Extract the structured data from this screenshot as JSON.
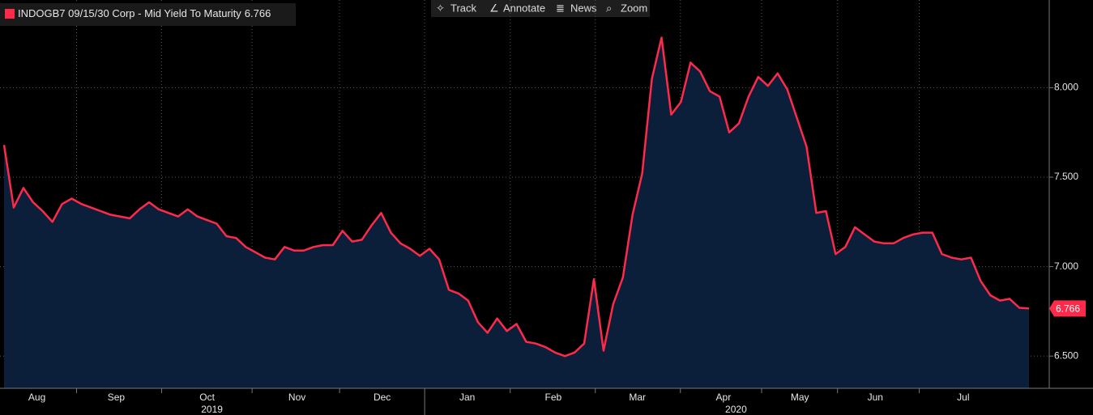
{
  "toolbar": {
    "buttons": [
      "Track",
      "Annotate",
      "News",
      "Zoom"
    ]
  },
  "chart_data": {
    "type": "area",
    "series": [
      {
        "name": "INDOGB7 09/15/30 Corp - Mid Yield To Maturity",
        "color": "#ff2a4a",
        "values": [
          7.68,
          7.33,
          7.44,
          7.36,
          7.31,
          7.25,
          7.35,
          7.38,
          7.35,
          7.33,
          7.31,
          7.29,
          7.28,
          7.27,
          7.32,
          7.36,
          7.32,
          7.3,
          7.28,
          7.32,
          7.28,
          7.26,
          7.24,
          7.17,
          7.16,
          7.11,
          7.08,
          7.05,
          7.04,
          7.11,
          7.09,
          7.09,
          7.11,
          7.12,
          7.12,
          7.2,
          7.14,
          7.15,
          7.23,
          7.3,
          7.19,
          7.13,
          7.1,
          7.06,
          7.1,
          7.04,
          6.87,
          6.85,
          6.81,
          6.69,
          6.63,
          6.71,
          6.64,
          6.68,
          6.58,
          6.57,
          6.55,
          6.52,
          6.5,
          6.52,
          6.57,
          6.93,
          6.53,
          6.79,
          6.94,
          7.29,
          7.52,
          8.05,
          8.28,
          7.85,
          7.92,
          8.14,
          8.09,
          7.98,
          7.95,
          7.75,
          7.8,
          7.95,
          8.06,
          8.01,
          8.08,
          7.99,
          7.83,
          7.67,
          7.3,
          7.31,
          7.07,
          7.11,
          7.22,
          7.18,
          7.14,
          7.13,
          7.13,
          7.16,
          7.18,
          7.19,
          7.19,
          7.07,
          7.05,
          7.04,
          7.05,
          6.92,
          6.84,
          6.81,
          6.82,
          6.77,
          6.766
        ]
      }
    ],
    "fill_color": "#0b1f3b",
    "xlim": [
      0,
      106
    ],
    "xticks": [
      {
        "value": 3.4,
        "label": "Aug"
      },
      {
        "value": 11.6,
        "label": "Sep"
      },
      {
        "value": 21.0,
        "label": "Oct"
      },
      {
        "value": 30.3,
        "label": "Nov"
      },
      {
        "value": 39.1,
        "label": "Dec"
      },
      {
        "value": 47.9,
        "label": "Jan"
      },
      {
        "value": 56.8,
        "label": "Feb"
      },
      {
        "value": 65.5,
        "label": "Mar"
      },
      {
        "value": 74.4,
        "label": "Apr"
      },
      {
        "value": 82.3,
        "label": "May"
      },
      {
        "value": 90.1,
        "label": "Jun"
      },
      {
        "value": 99.2,
        "label": "Jul"
      }
    ],
    "year_ticks": [
      {
        "value": 21.5,
        "label": "2019"
      },
      {
        "value": 75.7,
        "label": "2020"
      }
    ],
    "ylim": [
      6.32,
      8.49
    ],
    "yticks": [
      {
        "value": 6.5,
        "label": "6.500"
      },
      {
        "value": 7.0,
        "label": "7.000"
      },
      {
        "value": 7.5,
        "label": "7.500"
      },
      {
        "value": 8.0,
        "label": "8.000"
      }
    ],
    "grid": true
  }
}
